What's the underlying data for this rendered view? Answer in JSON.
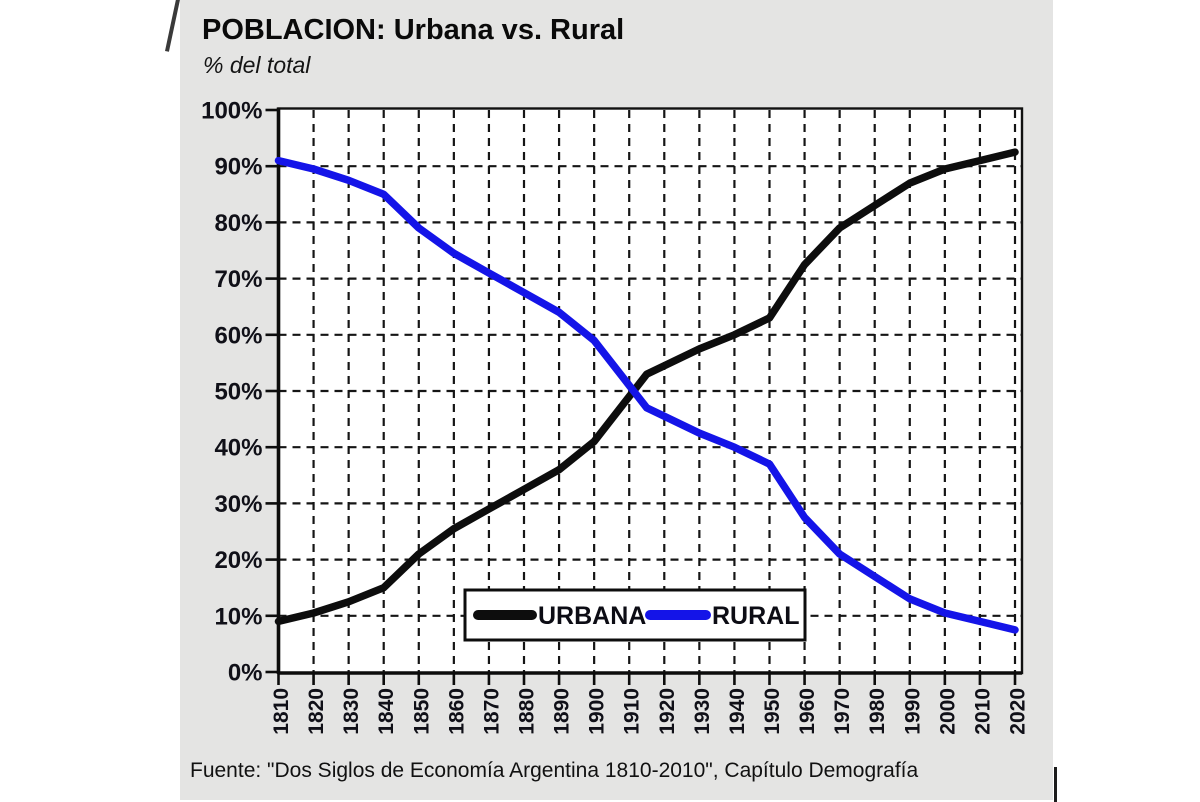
{
  "header": {
    "title": "POBLACION: Urbana vs. Rural",
    "subtitle": "% del total"
  },
  "source": "Fuente: \"Dos Siglos de Economía Argentina 1810-2010\", Capítulo Demografía",
  "legend": {
    "items": [
      {
        "label": "URBANA",
        "color": "#0d0d0d"
      },
      {
        "label": "RURAL",
        "color": "#1414e8"
      }
    ]
  },
  "chart_data": {
    "type": "line",
    "title": "POBLACION: Urbana vs. Rural",
    "subtitle": "% del total",
    "xlabel": "",
    "ylabel": "% del total",
    "xlim": [
      1810,
      2020
    ],
    "ylim": [
      0,
      100
    ],
    "grid": "dashed, both axes, every decade and every 10%",
    "legend_position": "inside bottom center",
    "x": [
      1810,
      1820,
      1830,
      1840,
      1850,
      1860,
      1870,
      1880,
      1890,
      1900,
      1910,
      1915,
      1920,
      1930,
      1940,
      1950,
      1960,
      1970,
      1980,
      1990,
      2000,
      2010,
      2020
    ],
    "series": [
      {
        "name": "URBANA",
        "color": "#0d0d0d",
        "values": [
          9,
          10.5,
          12.5,
          15,
          21,
          25.5,
          29,
          32.5,
          36,
          41,
          49,
          53,
          54.5,
          57.5,
          60,
          63,
          72.5,
          79,
          83,
          87,
          89.5,
          91,
          92.5
        ]
      },
      {
        "name": "RURAL",
        "color": "#1414e8",
        "values": [
          91,
          89.5,
          87.5,
          85,
          79,
          74.5,
          71,
          67.5,
          64,
          59,
          51,
          47,
          45.5,
          42.5,
          40,
          37,
          27.5,
          21,
          17,
          13,
          10.5,
          9,
          7.5
        ]
      }
    ],
    "x_ticks": [
      "1810",
      "1820",
      "1830",
      "1840",
      "1850",
      "1860",
      "1870",
      "1880",
      "1890",
      "1900",
      "1910",
      "1920",
      "1930",
      "1940",
      "1950",
      "1960",
      "1970",
      "1980",
      "1990",
      "2000",
      "2010",
      "2020"
    ],
    "y_ticks": [
      "0%",
      "10%",
      "20%",
      "30%",
      "40%",
      "50%",
      "60%",
      "70%",
      "80%",
      "90%",
      "100%"
    ]
  }
}
